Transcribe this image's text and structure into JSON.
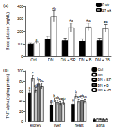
{
  "chart_data": [
    {
      "type": "bar",
      "title": "(a)",
      "y_label": "Blood glucose (mg/dL)",
      "categories": [
        "Ctrl",
        "DN",
        "DN + SP",
        "DN + B",
        "DN + 2B"
      ],
      "series": [
        {
          "name": "0 wk",
          "color": "#000000",
          "values": [
            100,
            140,
            130,
            125,
            130
          ],
          "errors": [
            8,
            20,
            15,
            15,
            15
          ],
          "annotations": [
            null,
            null,
            null,
            null,
            null
          ]
        },
        {
          "name": "27 wk",
          "color": "#ffffff",
          "values": [
            110,
            320,
            230,
            235,
            225
          ],
          "errors": [
            10,
            45,
            35,
            30,
            30
          ],
          "annotations": [
            "a",
            "#b",
            "#a",
            "#a",
            "#a"
          ]
        }
      ],
      "ylim": [
        0,
        400
      ],
      "yticks": [
        0,
        100,
        200,
        300,
        400
      ],
      "legend": "upper right",
      "grid": false
    },
    {
      "type": "bar",
      "title": "(b)",
      "y_label": "TNF-alpha (pg/mg protein)",
      "categories": [
        "kidney",
        "liver",
        "heart",
        "aorta"
      ],
      "series": [
        {
          "name": "Ctrl",
          "color": "#000000",
          "values": [
            57,
            33,
            35,
            5
          ],
          "errors": [
            5,
            4,
            4,
            1
          ],
          "annotations": [
            "a",
            "a",
            "a",
            null
          ]
        },
        {
          "name": "DN",
          "color": "#ffffff",
          "values": [
            85,
            43,
            50,
            6
          ],
          "errors": [
            6,
            4,
            5,
            1
          ],
          "annotations": [
            "c",
            "b",
            "b",
            null
          ]
        },
        {
          "name": "DN + SP",
          "color": "#c8c8c8",
          "values": [
            62,
            38,
            40,
            5
          ],
          "errors": [
            5,
            4,
            4,
            1
          ],
          "annotations": [
            "ab",
            "ab",
            "ab",
            null
          ]
        },
        {
          "name": "DN + B",
          "color": "#888888",
          "values": [
            75,
            36,
            42,
            5
          ],
          "errors": [
            6,
            4,
            4,
            1
          ],
          "annotations": [
            "bc",
            "ab",
            "ab",
            null
          ]
        },
        {
          "name": "DN + 2B",
          "color": "#e6e6e6",
          "values": [
            70,
            37,
            40,
            5
          ],
          "errors": [
            6,
            4,
            4,
            1
          ],
          "annotations": [
            "bc",
            "ab",
            "ab",
            null
          ]
        }
      ],
      "ylim": [
        0,
        100
      ],
      "yticks": [
        0,
        20,
        40,
        60,
        80,
        100
      ],
      "legend": "upper right",
      "grid": false
    }
  ]
}
